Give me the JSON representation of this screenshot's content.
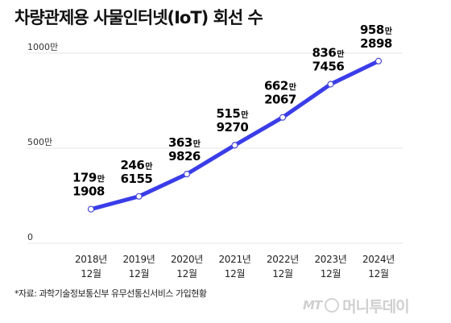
{
  "title": "차량관제용 사물인터넷(IoT) 회선 수",
  "source": "*자료: 과학기술정보통신부 유무선통신서비스 가입현황",
  "logo": {
    "mark": "MT",
    "name": "머니투데이"
  },
  "colors": {
    "line": "#3a3de8",
    "grid": "#e6e6e6",
    "point_fill": "#ffffff",
    "point_stroke": "#4a4ad0"
  },
  "chart_data": {
    "type": "line",
    "title": "차량관제용 사물인터넷(IoT) 회선 수",
    "ylim": [
      0,
      10000000
    ],
    "yticks": [
      0,
      5000000,
      10000000
    ],
    "ytick_labels": [
      "0",
      "500만",
      "1000만"
    ],
    "grid": true,
    "categories": [
      [
        "2018년",
        "12월"
      ],
      [
        "2019년",
        "12월"
      ],
      [
        "2020년",
        "12월"
      ],
      [
        "2021년",
        "12월"
      ],
      [
        "2022년",
        "12월"
      ],
      [
        "2023년",
        "12월"
      ],
      [
        "2024년",
        "12월"
      ]
    ],
    "series": [
      {
        "values": [
          1791908,
          2466155,
          3639826,
          5159270,
          6622067,
          8367456,
          9582898
        ],
        "labels": [
          [
            "179",
            "만",
            "1908"
          ],
          [
            "246",
            "만",
            "6155"
          ],
          [
            "363",
            "만",
            "9826"
          ],
          [
            "515",
            "만",
            "9270"
          ],
          [
            "662",
            "만",
            "2067"
          ],
          [
            "836",
            "만",
            "7456"
          ],
          [
            "958",
            "만",
            "2898"
          ]
        ]
      }
    ]
  }
}
